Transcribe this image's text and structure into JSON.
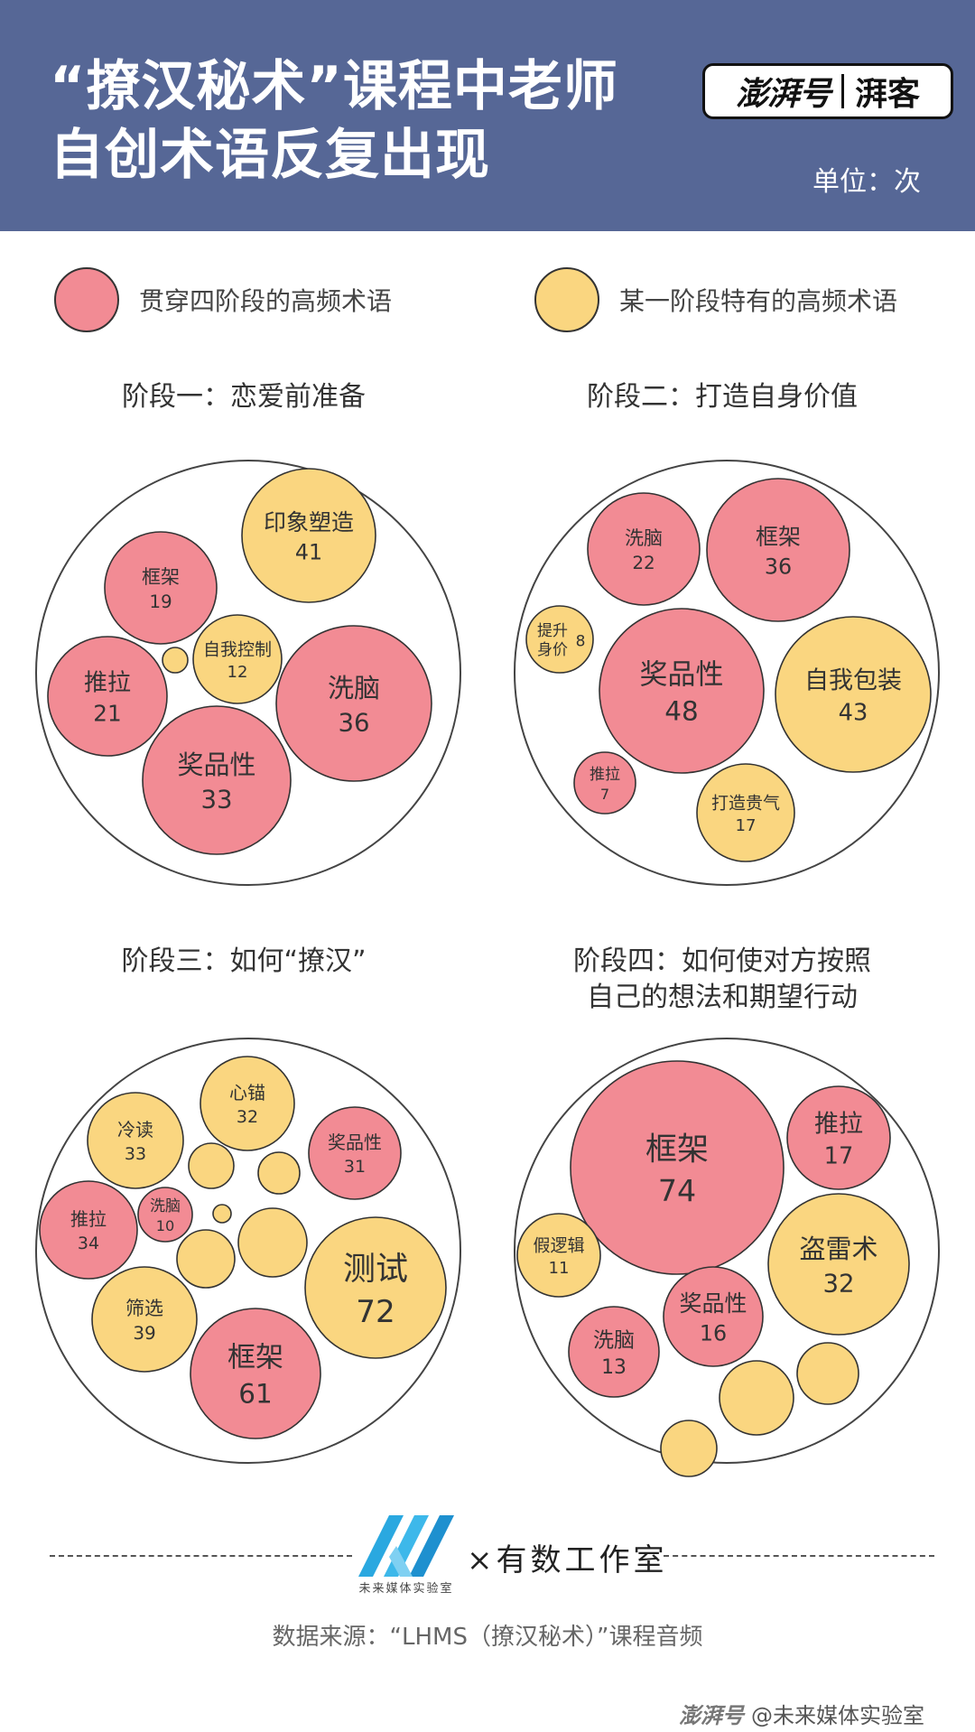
{
  "header": {
    "title_line1": "“撩汉秘术”课程中老师",
    "title_line2": "自创术语反复出现",
    "unit": "单位：次",
    "brand_left": "澎湃号",
    "brand_right": "湃客",
    "colors": {
      "background": "#566796",
      "text": "#ffffff"
    }
  },
  "legend": [
    {
      "label": "贯穿四阶段的高频术语",
      "color": "#f28b94"
    },
    {
      "label": "某一阶段特有的高频术语",
      "color": "#fad680"
    }
  ],
  "chart_data": [
    {
      "type": "bubble",
      "title": "阶段一：恋爱前准备",
      "bubbles": [
        {
          "term": "印象塑造",
          "value": 41,
          "kind": "stage"
        },
        {
          "term": "框架",
          "value": 19,
          "kind": "all"
        },
        {
          "term": "自我控制",
          "value": 12,
          "kind": "stage"
        },
        {
          "term": "",
          "value": 1,
          "kind": "stage"
        },
        {
          "term": "推拉",
          "value": 21,
          "kind": "all"
        },
        {
          "term": "洗脑",
          "value": 36,
          "kind": "all"
        },
        {
          "term": "奖品性",
          "value": 33,
          "kind": "all"
        }
      ]
    },
    {
      "type": "bubble",
      "title": "阶段二：打造自身价值",
      "bubbles": [
        {
          "term": "洗脑",
          "value": 22,
          "kind": "all"
        },
        {
          "term": "框架",
          "value": 36,
          "kind": "all"
        },
        {
          "term": "提升身价",
          "value": 8,
          "kind": "stage"
        },
        {
          "term": "奖品性",
          "value": 48,
          "kind": "all"
        },
        {
          "term": "自我包装",
          "value": 43,
          "kind": "stage"
        },
        {
          "term": "推拉",
          "value": 7,
          "kind": "all"
        },
        {
          "term": "打造贵气",
          "value": 17,
          "kind": "stage"
        }
      ]
    },
    {
      "type": "bubble",
      "title": "阶段三：如何“撩汉”",
      "bubbles": [
        {
          "term": "心锚",
          "value": 32,
          "kind": "stage"
        },
        {
          "term": "冷读",
          "value": 33,
          "kind": "stage"
        },
        {
          "term": "奖品性",
          "value": 31,
          "kind": "all"
        },
        {
          "term": "推拉",
          "value": 34,
          "kind": "all"
        },
        {
          "term": "洗脑",
          "value": 10,
          "kind": "all"
        },
        {
          "term": "测试",
          "value": 72,
          "kind": "stage"
        },
        {
          "term": "筛选",
          "value": 39,
          "kind": "stage"
        },
        {
          "term": "框架",
          "value": 61,
          "kind": "all"
        },
        {
          "term": "",
          "kind": "stage"
        },
        {
          "term": "",
          "kind": "stage"
        },
        {
          "term": "",
          "kind": "stage"
        },
        {
          "term": "",
          "kind": "stage"
        },
        {
          "term": "",
          "kind": "stage"
        }
      ]
    },
    {
      "type": "bubble",
      "title": "阶段四：如何使对方按照\n自己的想法和期望行动",
      "bubbles": [
        {
          "term": "框架",
          "value": 74,
          "kind": "all"
        },
        {
          "term": "推拉",
          "value": 17,
          "kind": "all"
        },
        {
          "term": "假逻辑",
          "value": 11,
          "kind": "stage"
        },
        {
          "term": "盗雷术",
          "value": 32,
          "kind": "stage"
        },
        {
          "term": "奖品性",
          "value": 16,
          "kind": "all"
        },
        {
          "term": "洗脑",
          "value": 13,
          "kind": "all"
        },
        {
          "term": "",
          "kind": "stage"
        },
        {
          "term": "",
          "kind": "stage"
        },
        {
          "term": "",
          "kind": "stage"
        }
      ]
    }
  ],
  "footer": {
    "logo_caption": "未来媒体实验室",
    "collab": "×有数工作室",
    "source": "数据来源：“LHMS（撩汉秘术）”课程音频",
    "watermark_brand": "澎湃号",
    "watermark_text": "@未来媒体实验室"
  }
}
